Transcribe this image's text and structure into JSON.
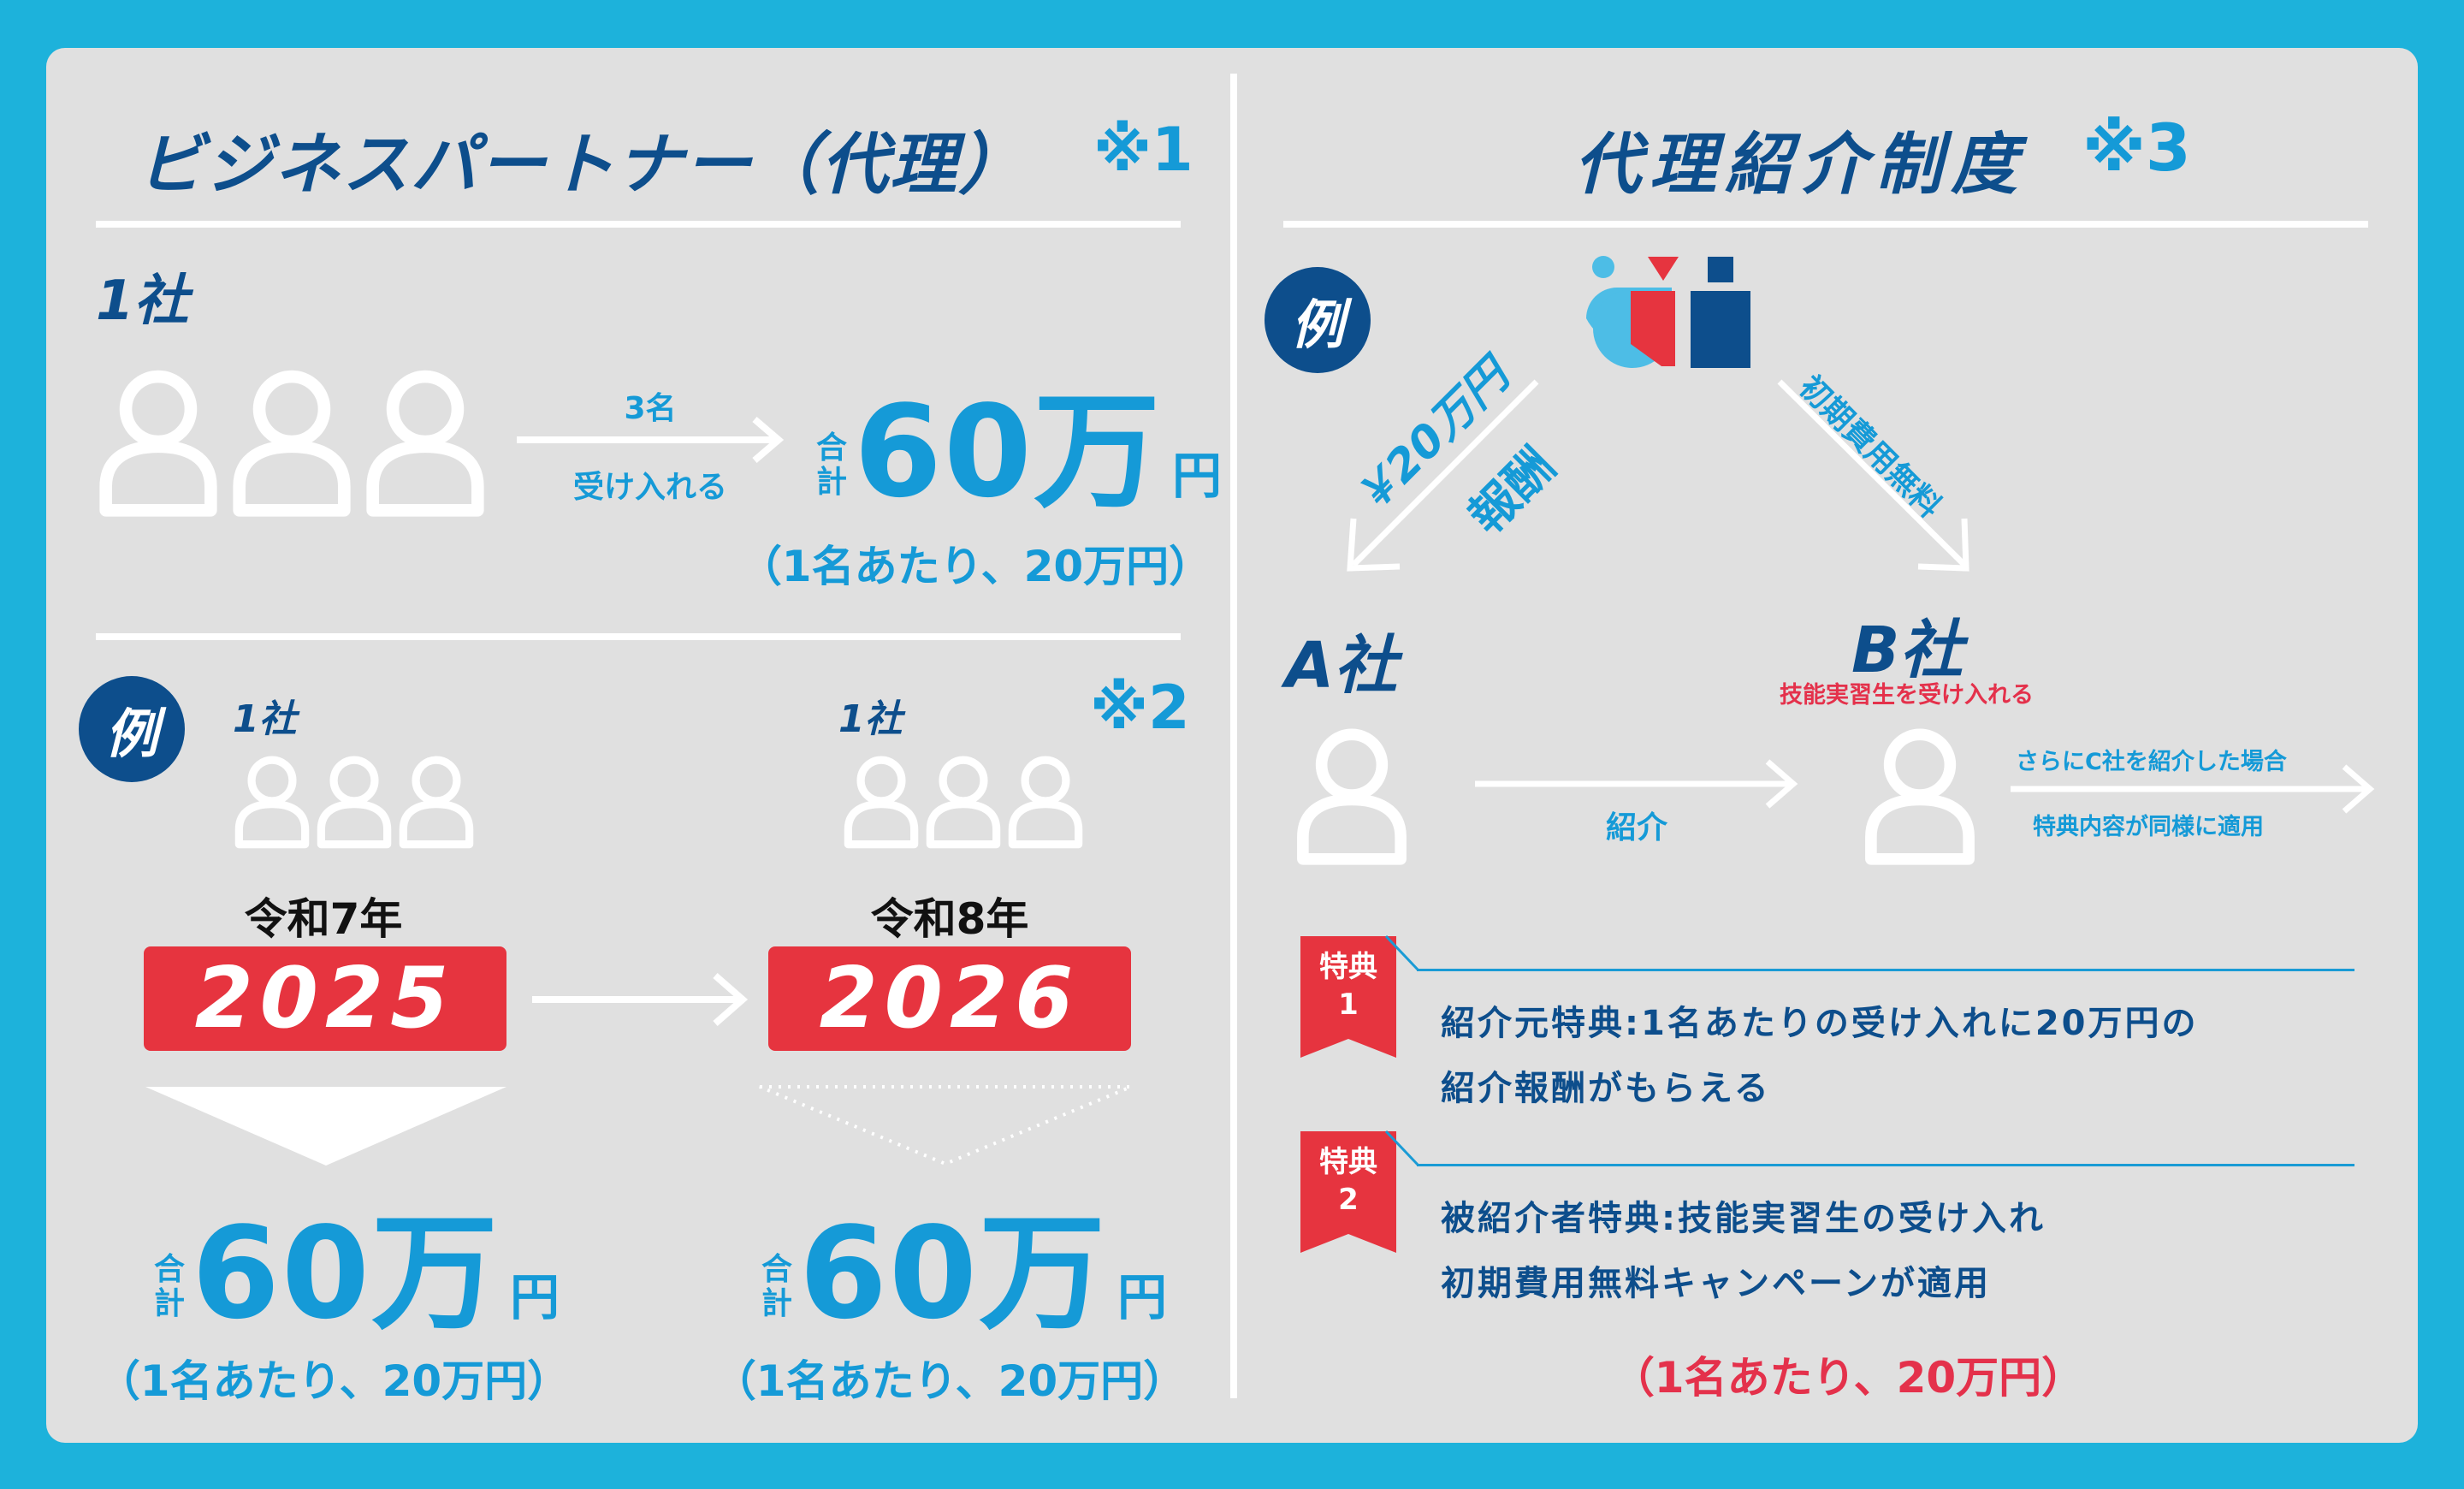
{
  "left": {
    "title": "ビジネスパートナー（代理）",
    "title_note": "※1",
    "section1": {
      "company": "1社",
      "arrow_top": "3名",
      "arrow_bottom": "受け入れる",
      "total_prefix_1": "合",
      "total_prefix_2": "計",
      "total_amount": "60万",
      "total_unit": "円",
      "per_person": "（1名あたり、20万円）"
    },
    "section2": {
      "badge": "例",
      "note": "※2",
      "col1": {
        "company": "1社",
        "era": "令和7年",
        "year": "2025",
        "total_prefix_1": "合",
        "total_prefix_2": "計",
        "total_amount": "60万",
        "total_unit": "円",
        "per_person": "（1名あたり、20万円）"
      },
      "col2": {
        "company": "1社",
        "era": "令和8年",
        "year": "2026",
        "total_prefix_1": "合",
        "total_prefix_2": "計",
        "total_amount": "60万",
        "total_unit": "円",
        "per_person": "（1名あたり、20万円）"
      }
    }
  },
  "right": {
    "title": "代理紹介制度",
    "title_note": "※3",
    "badge": "例",
    "left_arrow_amount": "￥20万円",
    "left_arrow_label": "報酬",
    "right_arrow_label": "初期費用無料",
    "company_a": "A社",
    "company_b": "B社",
    "company_b_sub": "技能実習生を受け入れる",
    "intro_label": "紹介",
    "further_1": "さらにC社を紹介した場合",
    "further_2": "特典内容が同様に適用",
    "benefits": [
      {
        "tag_1": "特典",
        "tag_2": "1",
        "line1": "紹介元特典:1名あたりの受け入れに20万円の",
        "line2": "紹介報酬がもらえる"
      },
      {
        "tag_1": "特典",
        "tag_2": "2",
        "line1": "被紹介者特典:技能実習生の受け入れ",
        "line2": "初期費用無料キャンペーンが適用"
      }
    ],
    "per_person": "（1名あたり、20万円）"
  },
  "colors": {
    "background": "#1db2db",
    "panel": "#e0e0e0",
    "navy": "#0d4e8c",
    "cyan": "#159ad7",
    "red": "#e4314b",
    "white": "#ffffff"
  }
}
